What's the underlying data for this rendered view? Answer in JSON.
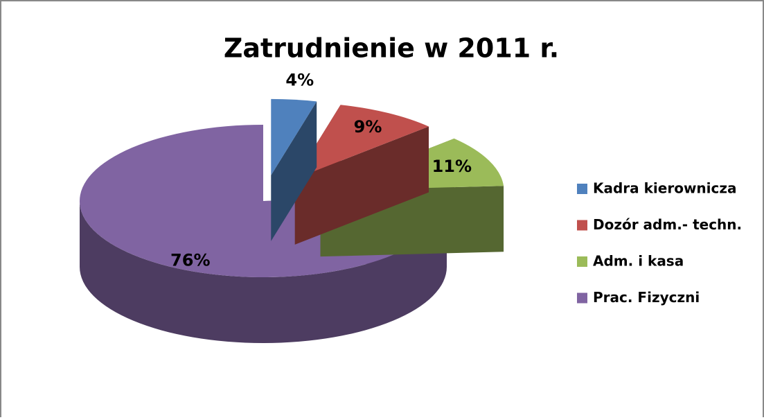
{
  "chart_data": {
    "type": "pie",
    "title": "Zatrudnienie w 2011 r.",
    "categories": [
      "Kadra kierownicza",
      "Dozór adm.- techn.",
      "Adm. i kasa",
      "Prac. Fizyczni"
    ],
    "values": [
      4,
      9,
      11,
      76
    ],
    "value_labels": [
      "4%",
      "9%",
      "11%",
      "76%"
    ],
    "colors": [
      "#4f81bd",
      "#c0504d",
      "#9bbb59",
      "#8064a2"
    ],
    "legend": "right"
  }
}
